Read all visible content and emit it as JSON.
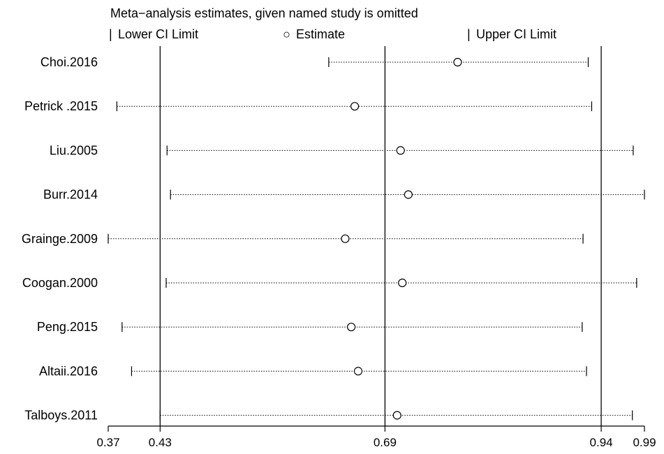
{
  "chart_data": {
    "type": "scatter",
    "title": "Meta−analysis estimates, given named study is omitted",
    "legend": {
      "placement": "top",
      "items": [
        {
          "symbol": "|",
          "label": "Lower CI Limit"
        },
        {
          "symbol": "○",
          "label": "Estimate"
        },
        {
          "symbol": "|",
          "label": "Upper CI Limit"
        }
      ]
    },
    "xlim": [
      0.37,
      0.99
    ],
    "xticks": [
      {
        "value": 0.37,
        "label": "0.37"
      },
      {
        "value": 0.43,
        "label": "0.43"
      },
      {
        "value": 0.69,
        "label": "0.69"
      },
      {
        "value": 0.94,
        "label": "0.94"
      },
      {
        "value": 0.99,
        "label": "0.99"
      }
    ],
    "reference_lines": [
      0.43,
      0.69,
      0.94
    ],
    "studies": [
      {
        "name": "Choi.2016",
        "lower": 0.625,
        "estimate": 0.774,
        "upper": 0.925
      },
      {
        "name": "Petrick .2015",
        "lower": 0.38,
        "estimate": 0.655,
        "upper": 0.929
      },
      {
        "name": "Liu.2005",
        "lower": 0.438,
        "estimate": 0.708,
        "upper": 0.977
      },
      {
        "name": "Burr.2014",
        "lower": 0.442,
        "estimate": 0.717,
        "upper": 0.99
      },
      {
        "name": "Grainge.2009",
        "lower": 0.37,
        "estimate": 0.644,
        "upper": 0.919
      },
      {
        "name": "Coogan.2000",
        "lower": 0.437,
        "estimate": 0.71,
        "upper": 0.981
      },
      {
        "name": "Peng.2015",
        "lower": 0.386,
        "estimate": 0.651,
        "upper": 0.918
      },
      {
        "name": "Altaii.2016",
        "lower": 0.397,
        "estimate": 0.659,
        "upper": 0.923
      },
      {
        "name": "Talboys.2011",
        "lower": 0.43,
        "estimate": 0.704,
        "upper": 0.976
      }
    ]
  }
}
